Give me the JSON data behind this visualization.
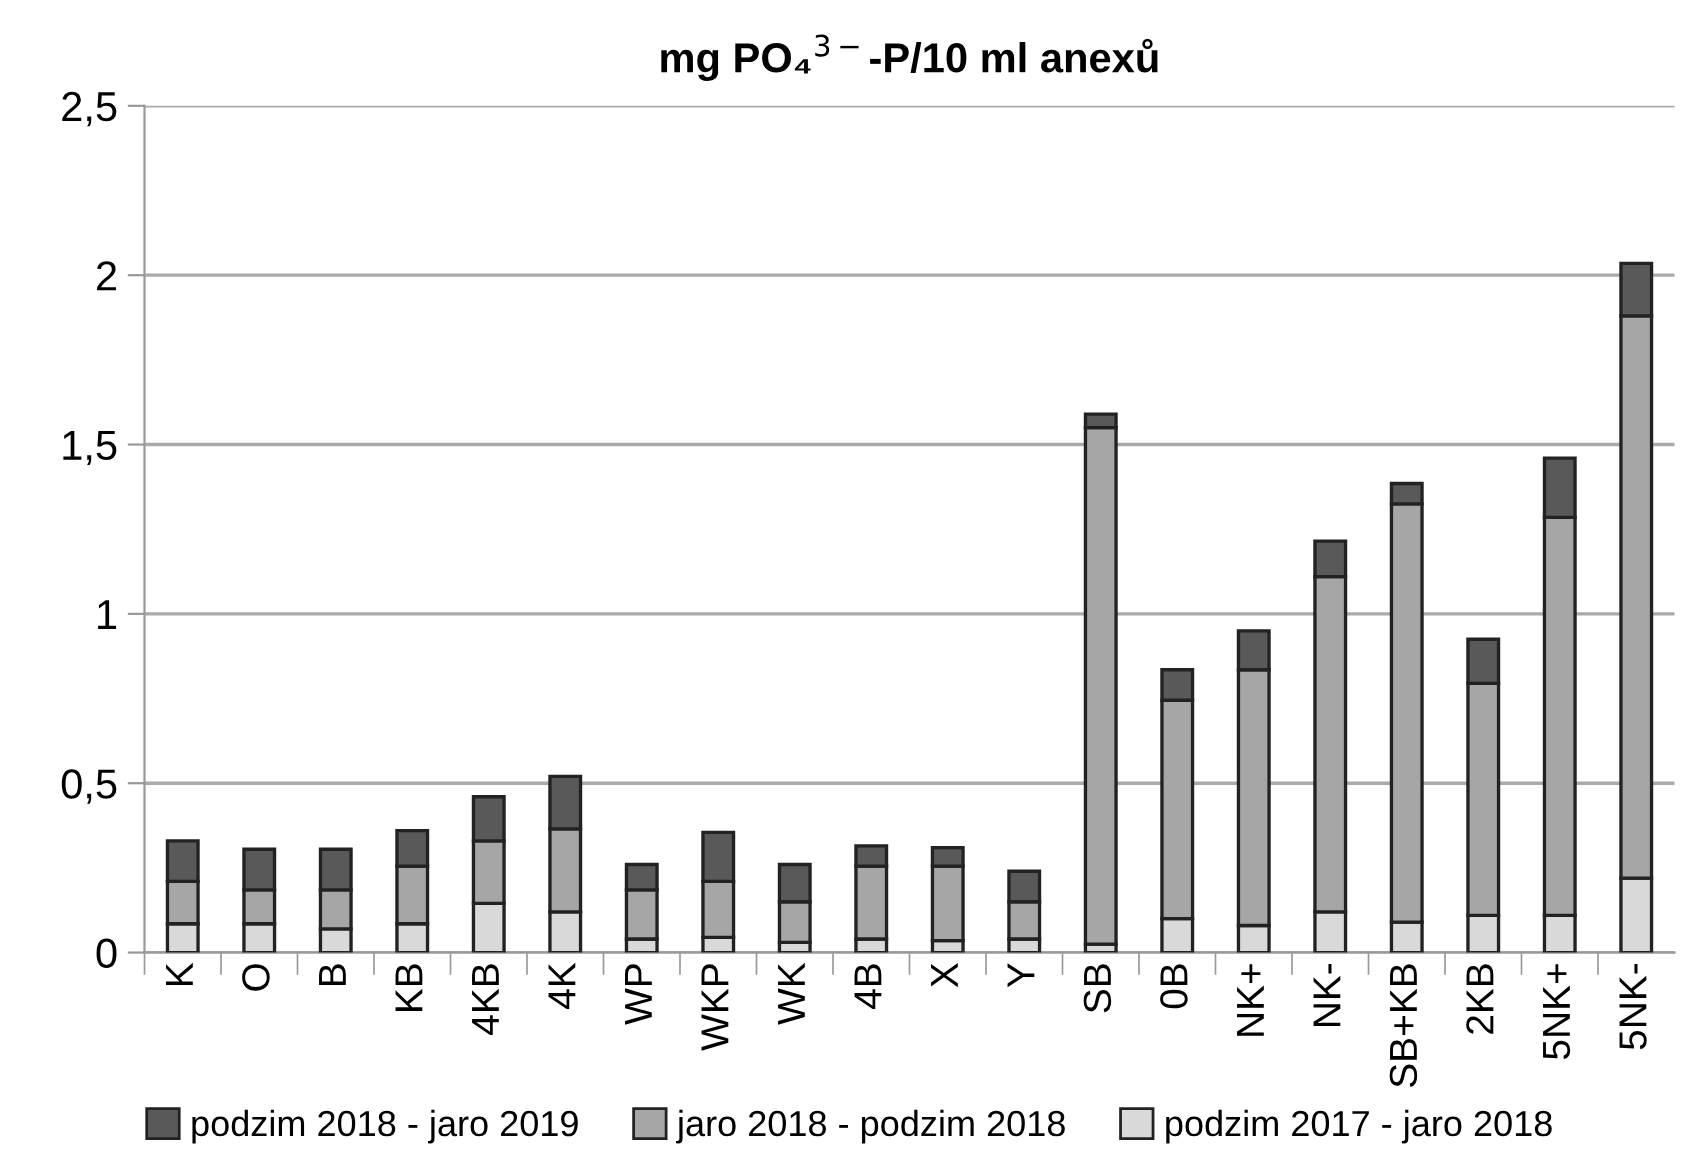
{
  "chart_data": {
    "type": "bar",
    "title": "mg PO₄$^{3−}$-P/10 ml anexů",
    "stacked": true,
    "categories": [
      "K",
      "O",
      "B",
      "KB",
      "4KB",
      "4K",
      "WP",
      "WKP",
      "WK",
      "4B",
      "X",
      "Y",
      "SB",
      "0B",
      "NK+",
      "NK-",
      "SB+KB",
      "2KB",
      "5NK+",
      "5NK-"
    ],
    "series": [
      {
        "name": "podzim 2017 - jaro 2018",
        "color": "#d9d9d9",
        "values": [
          0.085,
          0.085,
          0.07,
          0.085,
          0.145,
          0.12,
          0.04,
          0.045,
          0.03,
          0.04,
          0.035,
          0.04,
          0.025,
          0.1,
          0.08,
          0.12,
          0.09,
          0.11,
          0.11,
          0.22
        ]
      },
      {
        "name": "jaro 2018 - podzim 2018",
        "color": "#a6a6a6",
        "values": [
          0.125,
          0.1,
          0.115,
          0.17,
          0.185,
          0.245,
          0.145,
          0.165,
          0.12,
          0.215,
          0.22,
          0.11,
          1.525,
          0.645,
          0.755,
          0.99,
          1.235,
          0.685,
          1.175,
          1.66
        ]
      },
      {
        "name": "podzim 2018 - jaro 2019",
        "color": "#595959",
        "values": [
          0.12,
          0.12,
          0.12,
          0.105,
          0.13,
          0.155,
          0.075,
          0.145,
          0.11,
          0.06,
          0.055,
          0.09,
          0.04,
          0.09,
          0.115,
          0.105,
          0.06,
          0.13,
          0.175,
          0.155
        ]
      }
    ],
    "ylim": [
      0,
      2.5
    ],
    "yticks": [
      0,
      {
        "value": 0.5,
        "label": "0,5"
      },
      1,
      {
        "value": 1.5,
        "label": "1,5"
      },
      2,
      {
        "value": 2.5,
        "label": "2,5"
      }
    ],
    "grid": "y",
    "legend": "bottom"
  }
}
